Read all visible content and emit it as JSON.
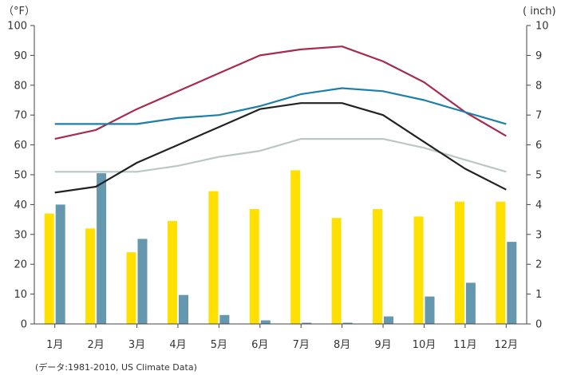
{
  "chart_data": {
    "type": "bar+line",
    "categories": [
      "1月",
      "2月",
      "3月",
      "4月",
      "5月",
      "6月",
      "7月",
      "8月",
      "9月",
      "10月",
      "11月",
      "12月"
    ],
    "y_left_label": "（°F）",
    "y_right_label": "( inch)",
    "y_left_range": [
      0,
      100
    ],
    "y_left_ticks": [
      "0",
      "10",
      "20",
      "30",
      "40",
      "50",
      "60",
      "70",
      "80",
      "90",
      "100"
    ],
    "y_right_range": [
      0,
      10
    ],
    "y_right_ticks": [
      "0",
      "1",
      "2",
      "3",
      "4",
      "5",
      "6",
      "7",
      "8",
      "9",
      "10"
    ],
    "source": "(データ:1981-2010, US Climate Data)",
    "bars": [
      {
        "name": "Precipitation (yellow)",
        "axis": "right",
        "color": "#FFE000",
        "values": [
          3.7,
          3.2,
          2.4,
          3.45,
          4.45,
          3.85,
          5.15,
          3.55,
          3.85,
          3.6,
          4.1,
          4.1
        ]
      },
      {
        "name": "Precipitation (blue)",
        "axis": "right",
        "color": "#6598AE",
        "values": [
          4.0,
          5.05,
          2.85,
          0.97,
          0.3,
          0.12,
          0.04,
          0.04,
          0.25,
          0.92,
          1.38,
          2.75
        ]
      }
    ],
    "series": [
      {
        "name": "Red line",
        "axis": "left",
        "color": "#A82B4E",
        "values": [
          62,
          65,
          72,
          78,
          84,
          90,
          92,
          93,
          88,
          81,
          71,
          63
        ]
      },
      {
        "name": "Blue line",
        "axis": "left",
        "color": "#1D7FA8",
        "values": [
          67,
          67,
          67,
          69,
          70,
          73,
          77,
          79,
          78,
          75,
          71,
          67
        ]
      },
      {
        "name": "Gray line",
        "axis": "left",
        "color": "#B9C7C5",
        "values": [
          51,
          51,
          51,
          53,
          56,
          58,
          62,
          62,
          62,
          59,
          55,
          51
        ]
      },
      {
        "name": "Black line",
        "axis": "left",
        "color": "#222222",
        "values": [
          44,
          46,
          54,
          60,
          66,
          72,
          74,
          74,
          70,
          61,
          52,
          45
        ]
      }
    ]
  }
}
